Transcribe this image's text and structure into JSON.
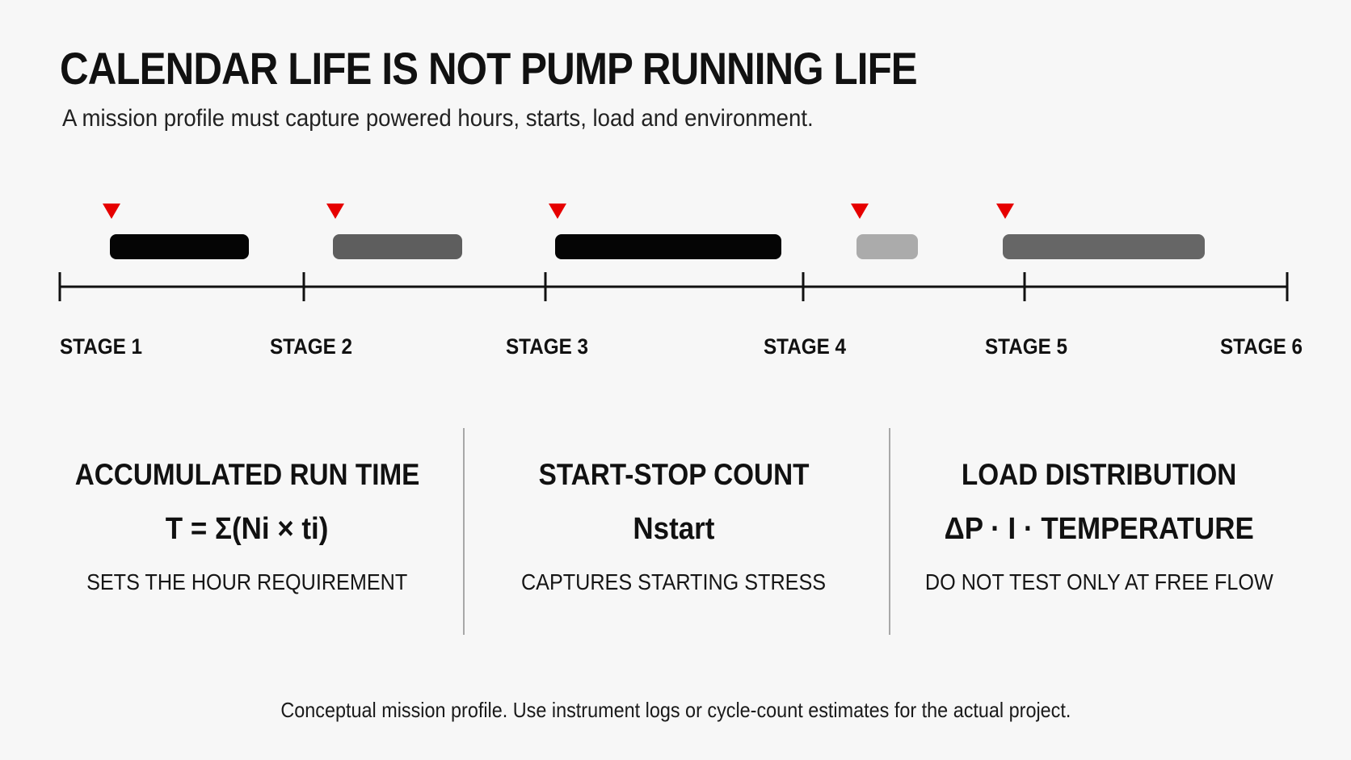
{
  "header": {
    "title": "CALENDAR LIFE IS NOT PUMP RUNNING LIFE",
    "subtitle": "A mission profile must capture powered hours, starts, load and environment."
  },
  "timeline": {
    "stages": [
      "STAGE 1",
      "STAGE 2",
      "STAGE 3",
      "STAGE 4",
      "STAGE 5",
      "STAGE 6"
    ],
    "tick_color": "#111111",
    "marker_color": "#e60000",
    "run_colors": [
      "#050505",
      "#5e5e5e",
      "#050505",
      "#ababab",
      "#666666"
    ]
  },
  "metrics": [
    {
      "title": "ACCUMULATED RUN TIME",
      "formula": "T = Σ(Ni × ti)",
      "note": "SETS THE HOUR REQUIREMENT"
    },
    {
      "title": "START-STOP COUNT",
      "formula": "Nstart",
      "note": "CAPTURES STARTING STRESS"
    },
    {
      "title": "LOAD DISTRIBUTION",
      "formula": "ΔP · I · TEMPERATURE",
      "note": "DO NOT TEST ONLY AT FREE FLOW"
    }
  ],
  "footer": "Conceptual mission profile.  Use instrument logs or cycle-count estimates for the actual project."
}
